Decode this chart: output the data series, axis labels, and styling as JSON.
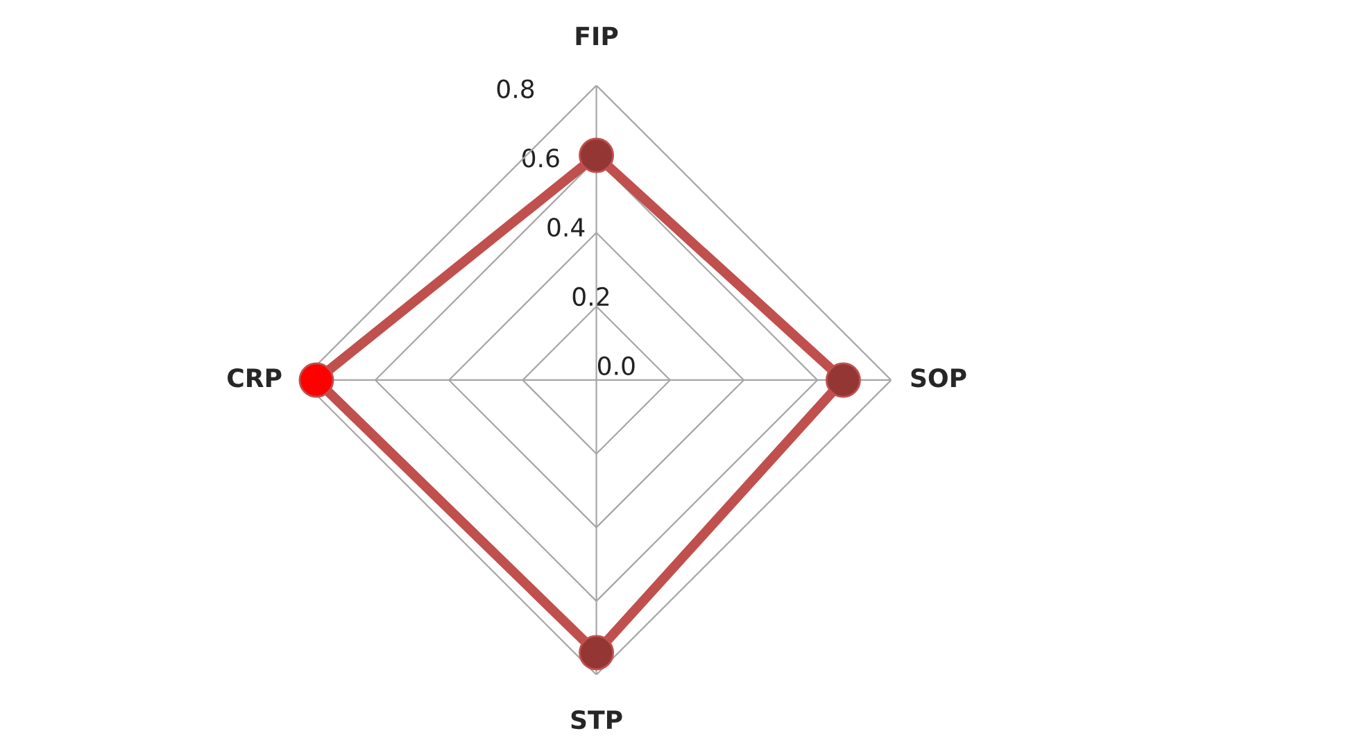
{
  "chart_data": {
    "type": "radar",
    "categories": [
      "FIP",
      "SOP",
      "STP",
      "CRP"
    ],
    "series": [
      {
        "color": "#c0504d",
        "colors": [
          "#943634",
          "#943634",
          "#943634",
          "#ff0000"
        ],
        "values": [
          0.61,
          0.67,
          0.74,
          0.76
        ]
      }
    ],
    "ylim": [
      0,
      0.8
    ],
    "yticks": [
      {
        "value": 0,
        "label": "0.0"
      },
      0.2,
      0.4,
      0.6,
      0.8
    ],
    "marker": "circle",
    "grid": true
  }
}
